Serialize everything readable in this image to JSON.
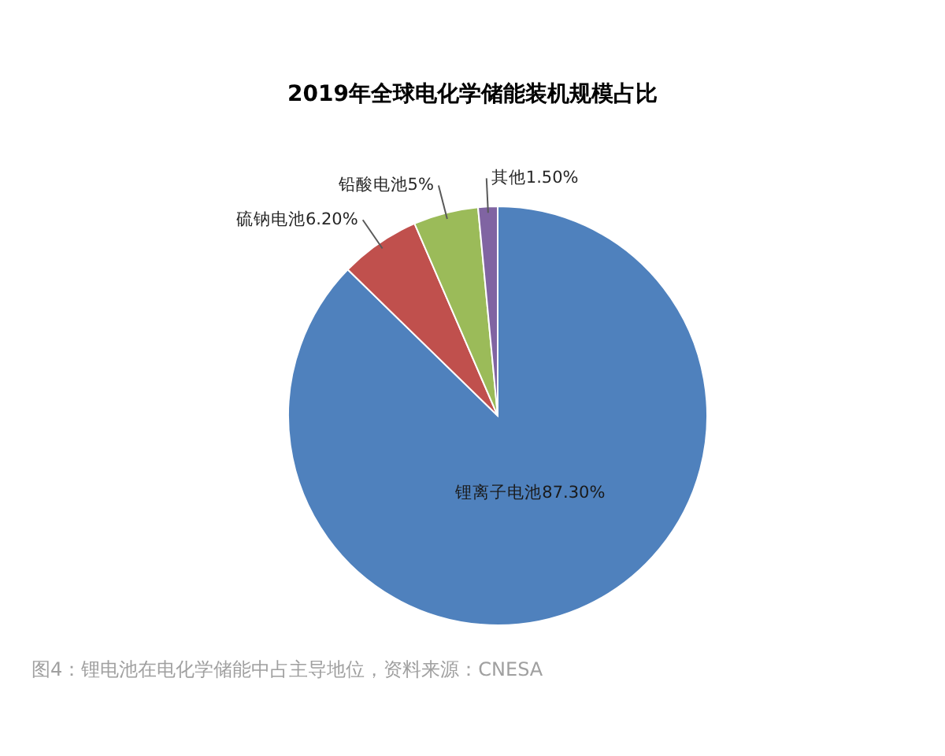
{
  "chart_data": {
    "type": "pie",
    "title": "2019年全球电化学储能装机规模占比",
    "categories": [
      "锂离子电池",
      "硫钠电池",
      "铅酸电池",
      "其他"
    ],
    "values": [
      87.3,
      6.2,
      5,
      1.5
    ],
    "colors": [
      "#4f81bd",
      "#c0504d",
      "#9bbb59",
      "#8064a2"
    ],
    "value_labels": [
      "87.30%",
      "6.20%",
      "5%",
      "1.50%"
    ],
    "legend": false,
    "annotations": [
      "图4：锂电池在电化学储能中占主导地位，资料来源：CNESA"
    ]
  }
}
